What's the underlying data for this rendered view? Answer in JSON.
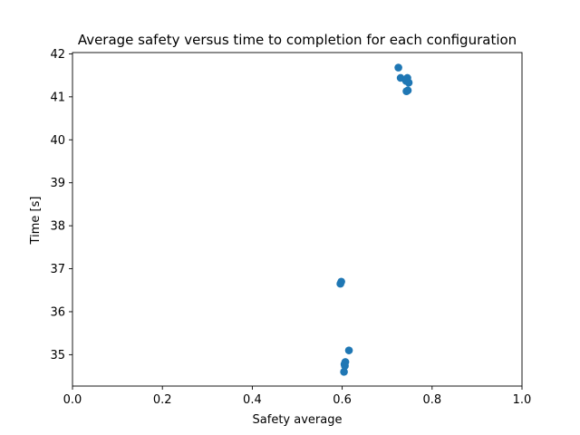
{
  "chart_data": {
    "type": "scatter",
    "title": "Average safety versus time to completion for each configuration",
    "xlabel": "Safety average",
    "ylabel": "Time [s]",
    "xlim": [
      0.0,
      1.0
    ],
    "ylim": [
      34.27,
      42.03
    ],
    "xticks": [
      0.0,
      0.2,
      0.4,
      0.6,
      0.8,
      1.0
    ],
    "xtick_labels": [
      "0.0",
      "0.2",
      "0.4",
      "0.6",
      "0.8",
      "1.0"
    ],
    "yticks": [
      35,
      36,
      37,
      38,
      39,
      40,
      41,
      42
    ],
    "ytick_labels": [
      "35",
      "36",
      "37",
      "38",
      "39",
      "40",
      "41",
      "42"
    ],
    "grid": false,
    "legend": "none",
    "marker_color": "#1f77b4",
    "series": [
      {
        "points": [
          {
            "x": 0.725,
            "y": 41.68
          },
          {
            "x": 0.73,
            "y": 41.44
          },
          {
            "x": 0.745,
            "y": 41.44
          },
          {
            "x": 0.742,
            "y": 41.37
          },
          {
            "x": 0.748,
            "y": 41.33
          },
          {
            "x": 0.746,
            "y": 41.15
          },
          {
            "x": 0.743,
            "y": 41.13
          },
          {
            "x": 0.598,
            "y": 36.7
          },
          {
            "x": 0.596,
            "y": 36.65
          },
          {
            "x": 0.615,
            "y": 35.1
          },
          {
            "x": 0.607,
            "y": 34.83
          },
          {
            "x": 0.605,
            "y": 34.78
          },
          {
            "x": 0.606,
            "y": 34.74
          },
          {
            "x": 0.604,
            "y": 34.6
          }
        ]
      }
    ]
  }
}
